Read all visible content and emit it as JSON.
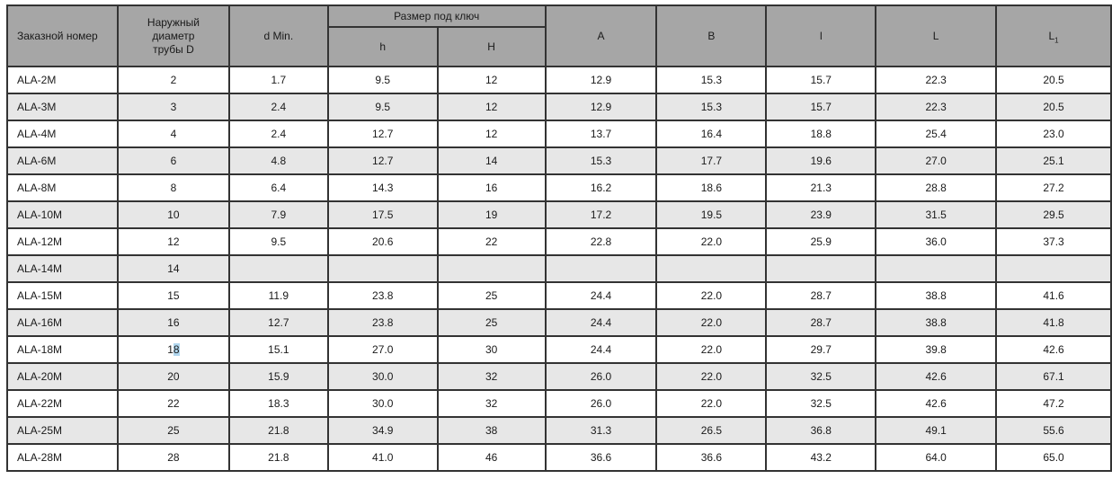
{
  "table": {
    "colors": {
      "header_bg": "#a6a6a6",
      "stripe_bg": "#e7e7e7",
      "border_color": "#333333",
      "highlight": "#b0d6ee"
    },
    "header": {
      "order_number": "Заказной номер",
      "outer_diameter_lines": [
        "Наружный",
        "диаметр",
        "трубы D"
      ],
      "d_min": "d Min.",
      "wrench_size": "Размер под ключ",
      "h_small": "h",
      "h_big": "H",
      "a": "A",
      "b": "B",
      "l_small": "l",
      "l_big": "L",
      "l1_base": "L",
      "l1_sub": "1"
    },
    "rows": [
      [
        "ALA-2M",
        "2",
        "1.7",
        "9.5",
        "12",
        "12.9",
        "15.3",
        "15.7",
        "22.3",
        "20.5"
      ],
      [
        "ALA-3M",
        "3",
        "2.4",
        "9.5",
        "12",
        "12.9",
        "15.3",
        "15.7",
        "22.3",
        "20.5"
      ],
      [
        "ALA-4M",
        "4",
        "2.4",
        "12.7",
        "12",
        "13.7",
        "16.4",
        "18.8",
        "25.4",
        "23.0"
      ],
      [
        "ALA-6M",
        "6",
        "4.8",
        "12.7",
        "14",
        "15.3",
        "17.7",
        "19.6",
        "27.0",
        "25.1"
      ],
      [
        "ALA-8M",
        "8",
        "6.4",
        "14.3",
        "16",
        "16.2",
        "18.6",
        "21.3",
        "28.8",
        "27.2"
      ],
      [
        "ALA-10M",
        "10",
        "7.9",
        "17.5",
        "19",
        "17.2",
        "19.5",
        "23.9",
        "31.5",
        "29.5"
      ],
      [
        "ALA-12M",
        "12",
        "9.5",
        "20.6",
        "22",
        "22.8",
        "22.0",
        "25.9",
        "36.0",
        "37.3"
      ],
      [
        "ALA-14M",
        "14",
        "",
        "",
        "",
        "",
        "",
        "",
        "",
        ""
      ],
      [
        "ALA-15M",
        "15",
        "11.9",
        "23.8",
        "25",
        "24.4",
        "22.0",
        "28.7",
        "38.8",
        "41.6"
      ],
      [
        "ALA-16M",
        "16",
        "12.7",
        "23.8",
        "25",
        "24.4",
        "22.0",
        "28.7",
        "38.8",
        "41.8"
      ],
      [
        "ALA-18M",
        {
          "pre": "1",
          "hl": "8"
        },
        "15.1",
        "27.0",
        "30",
        "24.4",
        "22.0",
        "29.7",
        "39.8",
        "42.6"
      ],
      [
        "ALA-20M",
        "20",
        "15.9",
        "30.0",
        "32",
        "26.0",
        "22.0",
        "32.5",
        "42.6",
        "67.1"
      ],
      [
        "ALA-22M",
        "22",
        "18.3",
        "30.0",
        "32",
        "26.0",
        "22.0",
        "32.5",
        "42.6",
        "47.2"
      ],
      [
        "ALA-25M",
        "25",
        "21.8",
        "34.9",
        "38",
        "31.3",
        "26.5",
        "36.8",
        "49.1",
        "55.6"
      ],
      [
        "ALA-28M",
        "28",
        "21.8",
        "41.0",
        "46",
        "36.6",
        "36.6",
        "43.2",
        "64.0",
        "65.0"
      ]
    ]
  }
}
